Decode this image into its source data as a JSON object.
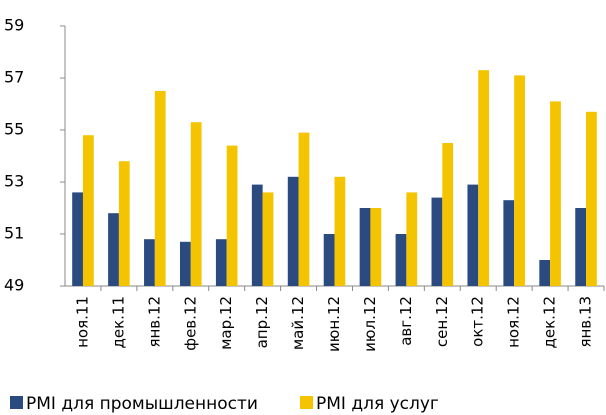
{
  "chart_data": {
    "type": "bar",
    "categories": [
      "ноя.11",
      "дек.11",
      "янв.12",
      "фев.12",
      "мар.12",
      "апр.12",
      "май.12",
      "июн.12",
      "июл.12",
      "авг.12",
      "сен.12",
      "окт.12",
      "ноя.12",
      "дек.12",
      "янв.13"
    ],
    "series": [
      {
        "name": "PMI для промышленности",
        "color": "#2a4a80",
        "values": [
          52.6,
          51.8,
          50.8,
          50.7,
          50.8,
          52.9,
          53.2,
          51.0,
          52.0,
          51.0,
          52.4,
          52.9,
          52.3,
          50.0,
          52.0
        ]
      },
      {
        "name": "PMI для услуг",
        "color": "#f5c400",
        "values": [
          54.8,
          53.8,
          56.5,
          55.3,
          54.4,
          52.6,
          54.9,
          53.2,
          52.0,
          52.6,
          54.5,
          57.3,
          57.1,
          56.1,
          55.7
        ]
      }
    ],
    "ylim": [
      49,
      59
    ],
    "yticks": [
      49,
      51,
      53,
      55,
      57,
      59
    ],
    "grid": false,
    "legend": "bottom"
  }
}
